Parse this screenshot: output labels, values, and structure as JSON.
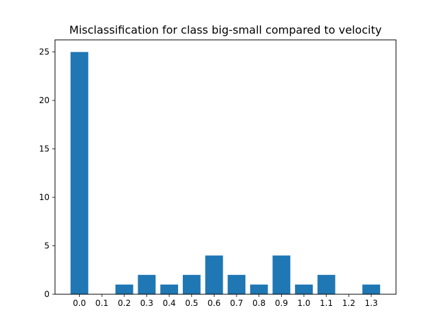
{
  "chart_data": {
    "type": "bar",
    "title": "Misclassification for class big-small compared to velocity",
    "xlabel": "",
    "ylabel": "",
    "categories": [
      "0.0",
      "0.1",
      "0.2",
      "0.3",
      "0.4",
      "0.5",
      "0.6",
      "0.7",
      "0.8",
      "0.9",
      "1.0",
      "1.1",
      "1.2",
      "1.3"
    ],
    "values": [
      25,
      0,
      1,
      2,
      1,
      2,
      4,
      2,
      1,
      4,
      1,
      2,
      0,
      1
    ],
    "ylim": [
      0,
      26.25
    ],
    "yticks": [
      0,
      5,
      10,
      15,
      20,
      25
    ],
    "grid": false,
    "legend": false,
    "bar_color": "#1f77b4"
  }
}
